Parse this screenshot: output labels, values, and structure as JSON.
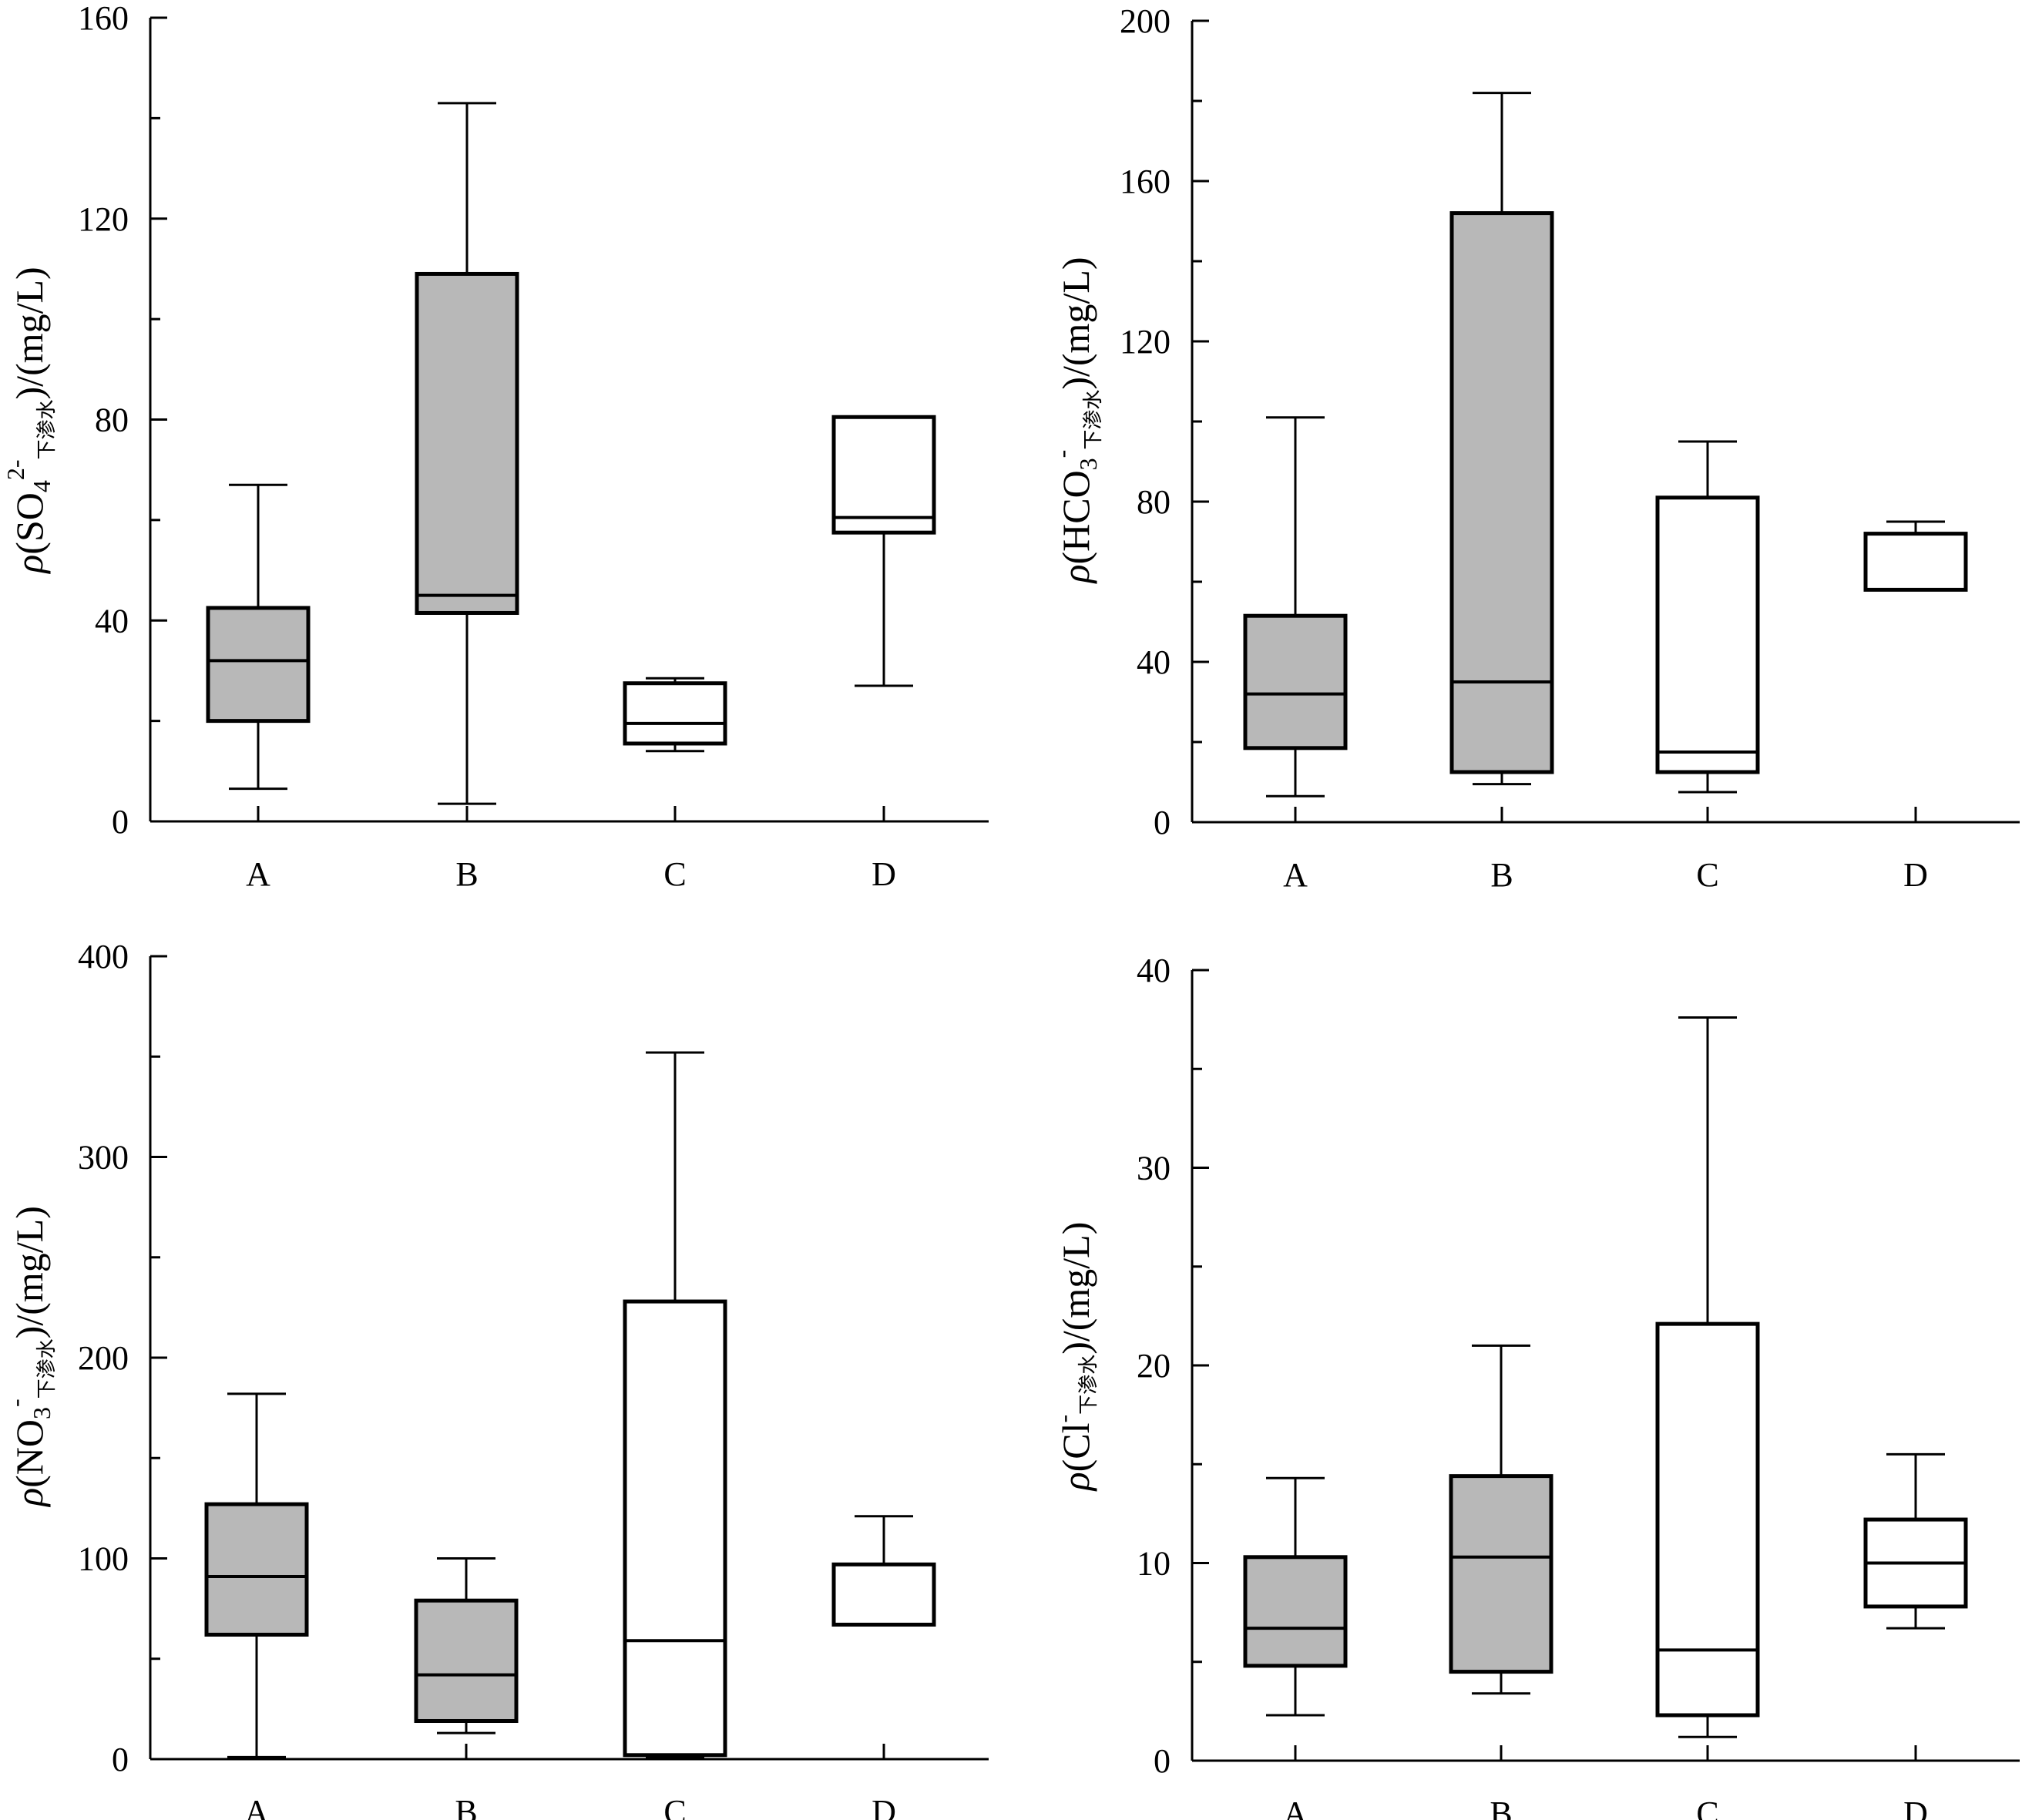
{
  "chart_data": [
    {
      "type": "box",
      "categories": [
        "A",
        "B",
        "C",
        "D"
      ],
      "ylim": [
        0,
        160
      ],
      "yticks": [
        0,
        40,
        80,
        120,
        160
      ],
      "ylabel": {
        "rho": "ρ",
        "pre": "(SO",
        "sub1": "4",
        "sup": "2-",
        "sub2": "下渗水",
        "post": ")/(mg/L)"
      },
      "boxes": [
        {
          "category": "A",
          "min": 6.5,
          "q1": 20,
          "median": 32,
          "q3": 42.5,
          "max": 67,
          "fill": "#b8b8b8"
        },
        {
          "category": "B",
          "min": 3.5,
          "q1": 41.5,
          "median": 45,
          "q3": 109,
          "max": 143,
          "fill": "#b8b8b8"
        },
        {
          "category": "C",
          "min": 14,
          "q1": 15.5,
          "median": 19.5,
          "q3": 27.5,
          "max": 28.5,
          "fill": "#ffffff"
        },
        {
          "category": "D",
          "min": 27,
          "q1": 57.5,
          "median": 60.5,
          "q3": 80.5,
          "max": 80.5,
          "fill": "#ffffff"
        }
      ]
    },
    {
      "type": "box",
      "categories": [
        "A",
        "B",
        "C",
        "D"
      ],
      "ylim": [
        0,
        200
      ],
      "yticks": [
        0,
        40,
        80,
        120,
        160,
        200
      ],
      "ylabel": {
        "rho": "ρ",
        "pre": "(HCO",
        "sub1": "3",
        "sup": "-",
        "sub2": "下渗水",
        "post": ")/(mg/L)"
      },
      "boxes": [
        {
          "category": "A",
          "min": 6.5,
          "q1": 18.5,
          "median": 32,
          "q3": 51.5,
          "max": 101,
          "fill": "#b8b8b8"
        },
        {
          "category": "B",
          "min": 9.5,
          "q1": 12.5,
          "median": 35,
          "q3": 152,
          "max": 182,
          "fill": "#b8b8b8"
        },
        {
          "category": "C",
          "min": 7.5,
          "q1": 12.5,
          "median": 17.5,
          "q3": 81,
          "max": 95,
          "fill": "#ffffff"
        },
        {
          "category": "D",
          "min": 58,
          "q1": 58,
          "median": 72,
          "q3": 72,
          "max": 75,
          "fill": "#ffffff"
        }
      ]
    },
    {
      "type": "box",
      "categories": [
        "A",
        "B",
        "C",
        "D"
      ],
      "ylim": [
        0,
        400
      ],
      "yticks": [
        0,
        100,
        200,
        300,
        400
      ],
      "ylabel": {
        "rho": "ρ",
        "pre": "(NO",
        "sub1": "3",
        "sup": "-",
        "sub2": "下渗水",
        "post": ")/(mg/L)"
      },
      "boxes": [
        {
          "category": "A",
          "min": 1,
          "q1": 62,
          "median": 91,
          "q3": 127,
          "max": 182,
          "fill": "#b8b8b8"
        },
        {
          "category": "B",
          "min": 13,
          "q1": 19,
          "median": 42,
          "q3": 79,
          "max": 100,
          "fill": "#b8b8b8"
        },
        {
          "category": "C",
          "min": 1,
          "q1": 2,
          "median": 59,
          "q3": 228,
          "max": 352,
          "fill": "#ffffff"
        },
        {
          "category": "D",
          "min": 67,
          "q1": 67,
          "median": 67,
          "q3": 97,
          "max": 121,
          "fill": "#ffffff"
        }
      ]
    },
    {
      "type": "box",
      "categories": [
        "A",
        "B",
        "C",
        "D"
      ],
      "ylim": [
        0,
        40
      ],
      "yticks": [
        0,
        10,
        20,
        30,
        40
      ],
      "ylabel": {
        "rho": "ρ",
        "pre": "(Cl",
        "sub1": "",
        "sup": "-",
        "sub2": "下渗水",
        "post": ")/(mg/L)"
      },
      "boxes": [
        {
          "category": "A",
          "min": 2.3,
          "q1": 4.8,
          "median": 6.7,
          "q3": 10.3,
          "max": 14.3,
          "fill": "#b8b8b8"
        },
        {
          "category": "B",
          "min": 3.4,
          "q1": 4.5,
          "median": 10.3,
          "q3": 14.4,
          "max": 21,
          "fill": "#b8b8b8"
        },
        {
          "category": "C",
          "min": 1.2,
          "q1": 2.3,
          "median": 5.6,
          "q3": 22.1,
          "max": 37.6,
          "fill": "#ffffff"
        },
        {
          "category": "D",
          "min": 6.7,
          "q1": 7.8,
          "median": 10,
          "q3": 12.2,
          "max": 15.5,
          "fill": "#ffffff"
        }
      ]
    }
  ]
}
